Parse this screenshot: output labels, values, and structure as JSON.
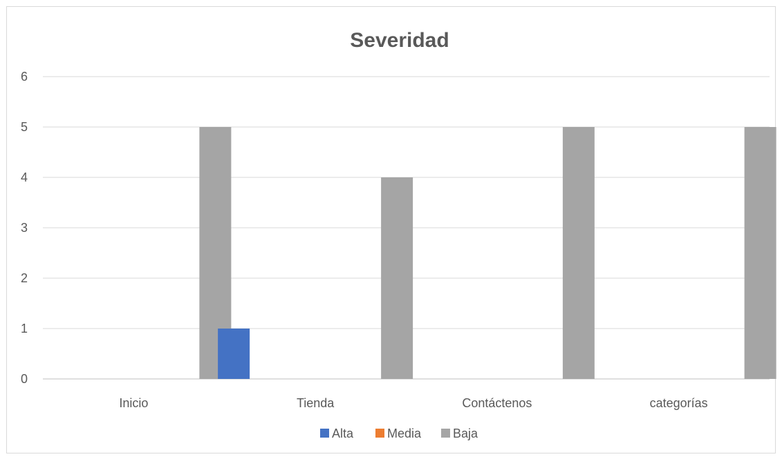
{
  "chart_data": {
    "type": "bar",
    "title": "Severidad",
    "xlabel": "",
    "ylabel": "",
    "categories": [
      "Inicio",
      "Tienda",
      "Contáctenos",
      "categorías"
    ],
    "series": [
      {
        "name": "Alta",
        "color": "#4472c4",
        "values": [
          0,
          1,
          0,
          0
        ]
      },
      {
        "name": "Media",
        "color": "#ed7d31",
        "values": [
          0,
          0,
          0,
          0
        ]
      },
      {
        "name": "Baja",
        "color": "#a5a5a5",
        "values": [
          5,
          4,
          5,
          5
        ]
      }
    ],
    "ylim": [
      0,
      6
    ],
    "yticks": [
      0,
      1,
      2,
      3,
      4,
      5,
      6
    ],
    "grid": true,
    "legend_position": "bottom"
  }
}
